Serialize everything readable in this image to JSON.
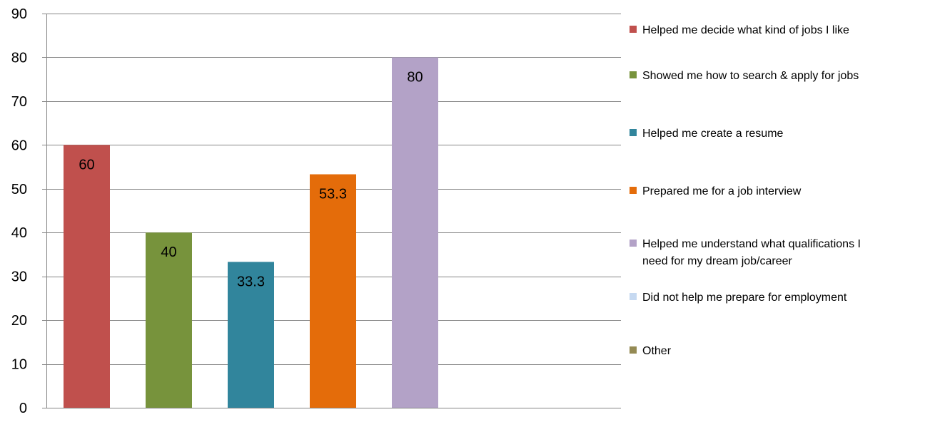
{
  "chart_data": {
    "type": "bar",
    "title": "",
    "xlabel": "",
    "ylabel": "",
    "ylim": [
      0,
      90
    ],
    "yticks": [
      0,
      10,
      20,
      30,
      40,
      50,
      60,
      70,
      80,
      90
    ],
    "grid": true,
    "legend_position": "right",
    "series": [
      {
        "name": "Helped me decide what kind of jobs I like",
        "value": 60,
        "label": "60",
        "color": "#C0504D"
      },
      {
        "name": "Showed me how to search & apply for jobs",
        "value": 40,
        "label": "40",
        "color": "#77933C"
      },
      {
        "name": "Helped me create a resume",
        "value": 33.3,
        "label": "33.3",
        "color": "#31859C"
      },
      {
        "name": "Prepared me for a job interview",
        "value": 53.3,
        "label": "53.3",
        "color": "#E46C0A"
      },
      {
        "name": "Helped me understand what qualifications I need for my dream job/career",
        "value": 80,
        "label": "80",
        "color": "#B3A2C7"
      },
      {
        "name": "Did not help me prepare for employment",
        "value": 0,
        "label": "",
        "color": "#C6D9F1"
      },
      {
        "name": "Other",
        "value": 0,
        "label": "",
        "color": "#948A54"
      }
    ],
    "gridline_color": "#868686",
    "axis_color": "#868686"
  }
}
